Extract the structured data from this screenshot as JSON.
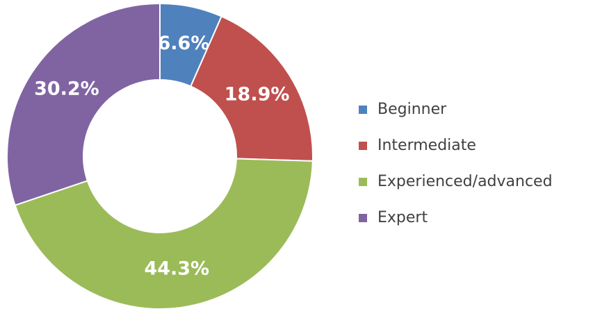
{
  "chart_data": {
    "type": "doughnut",
    "categories": [
      "Beginner",
      "Intermediate",
      "Experienced/advanced",
      "Expert"
    ],
    "values": [
      6.6,
      18.9,
      44.3,
      30.2
    ],
    "value_labels": [
      "6.6%",
      "18.9%",
      "44.3%",
      "30.2%"
    ],
    "colors": [
      "#4f81bd",
      "#c0504d",
      "#9bbb59",
      "#8064a2"
    ],
    "legend": "right"
  }
}
